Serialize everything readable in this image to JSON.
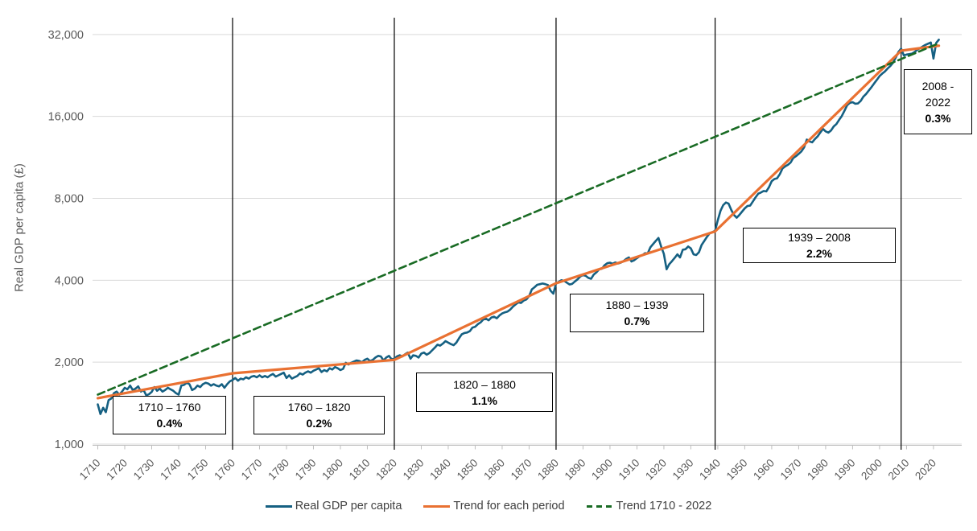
{
  "chart_data": {
    "type": "line",
    "title": "",
    "xlabel": "",
    "ylabel": "Real GDP per capita (£)",
    "y_scale": "log2",
    "ylim": [
      1000,
      40000
    ],
    "xlim": [
      1710,
      2022
    ],
    "y_ticks": [
      {
        "value": 1000,
        "label": "1,000"
      },
      {
        "value": 2000,
        "label": "2,000"
      },
      {
        "value": 4000,
        "label": "4,000"
      },
      {
        "value": 8000,
        "label": "8,000"
      },
      {
        "value": 16000,
        "label": "16,000"
      },
      {
        "value": 32000,
        "label": "32,000"
      }
    ],
    "x_ticks": [
      1710,
      1720,
      1730,
      1740,
      1750,
      1760,
      1770,
      1780,
      1790,
      1800,
      1810,
      1820,
      1830,
      1840,
      1850,
      1860,
      1870,
      1880,
      1890,
      1900,
      1910,
      1920,
      1930,
      1940,
      1950,
      1960,
      1970,
      1980,
      1990,
      2000,
      2010,
      2020
    ],
    "period_dividers": [
      1760,
      1820,
      1880,
      1939,
      2008
    ],
    "legend_position": "bottom",
    "grid": "horizontal",
    "series": [
      {
        "name": "Real GDP per capita",
        "color": "#156082",
        "style": "solid",
        "width": 2.6,
        "start_year": 1710,
        "annual_values": [
          1400,
          1290,
          1360,
          1310,
          1450,
          1470,
          1540,
          1560,
          1520,
          1560,
          1610,
          1590,
          1640,
          1580,
          1600,
          1630,
          1560,
          1580,
          1510,
          1525,
          1555,
          1620,
          1570,
          1600,
          1560,
          1580,
          1610,
          1590,
          1570,
          1540,
          1520,
          1640,
          1650,
          1680,
          1660,
          1580,
          1600,
          1640,
          1620,
          1660,
          1680,
          1670,
          1640,
          1660,
          1640,
          1630,
          1660,
          1610,
          1660,
          1700,
          1720,
          1750,
          1710,
          1740,
          1730,
          1760,
          1740,
          1770,
          1780,
          1760,
          1790,
          1760,
          1780,
          1760,
          1790,
          1810,
          1770,
          1790,
          1810,
          1830,
          1750,
          1790,
          1740,
          1760,
          1780,
          1820,
          1800,
          1830,
          1850,
          1830,
          1860,
          1880,
          1900,
          1840,
          1870,
          1850,
          1900,
          1880,
          1920,
          1900,
          1870,
          1890,
          1990,
          1960,
          1990,
          2010,
          2030,
          2020,
          2000,
          2040,
          2060,
          2020,
          2040,
          2080,
          2110,
          2100,
          2030,
          2080,
          2110,
          2050,
          2060,
          2100,
          2120,
          2100,
          2140,
          2170,
          2060,
          2120,
          2110,
          2080,
          2150,
          2170,
          2130,
          2160,
          2210,
          2260,
          2320,
          2300,
          2340,
          2390,
          2360,
          2330,
          2310,
          2360,
          2450,
          2530,
          2560,
          2570,
          2600,
          2680,
          2700,
          2760,
          2800,
          2870,
          2890,
          2850,
          2920,
          2940,
          2900,
          2970,
          3020,
          3050,
          3070,
          3120,
          3200,
          3260,
          3320,
          3300,
          3370,
          3400,
          3500,
          3700,
          3770,
          3850,
          3870,
          3890,
          3870,
          3840,
          3660,
          3570,
          3890,
          3950,
          4000,
          3980,
          3920,
          3860,
          3880,
          3960,
          4030,
          4130,
          4180,
          4150,
          4080,
          4050,
          4200,
          4280,
          4390,
          4410,
          4540,
          4620,
          4640,
          4600,
          4650,
          4610,
          4640,
          4700,
          4790,
          4850,
          4690,
          4740,
          4820,
          4900,
          4940,
          5030,
          5020,
          5290,
          5430,
          5580,
          5720,
          5310,
          5000,
          4390,
          4580,
          4700,
          4830,
          4980,
          4850,
          5180,
          5200,
          5320,
          5240,
          4980,
          4950,
          5070,
          5390,
          5580,
          5780,
          5960,
          6010,
          6080,
          6650,
          7200,
          7550,
          7720,
          7650,
          7250,
          6950,
          6790,
          6950,
          7150,
          7350,
          7500,
          7520,
          7790,
          8060,
          8320,
          8400,
          8510,
          8480,
          8800,
          9250,
          9420,
          9480,
          9820,
          10300,
          10480,
          10620,
          10830,
          11250,
          11430,
          11650,
          11900,
          12300,
          13150,
          12950,
          12850,
          13200,
          13500,
          13950,
          14400,
          14100,
          13950,
          14200,
          14700,
          15000,
          15550,
          16050,
          16800,
          17600,
          17950,
          18050,
          17800,
          17850,
          18250,
          18900,
          19350,
          19900,
          20500,
          21150,
          21800,
          22500,
          23000,
          23400,
          24000,
          24500,
          25200,
          26300,
          27600,
          28400,
          26800,
          27000,
          27100,
          27200,
          27600,
          28100,
          28500,
          28900,
          29300,
          29600,
          29900,
          26100,
          29800,
          30600
        ]
      },
      {
        "name": "Trend for each period",
        "color": "#E97132",
        "style": "solid",
        "width": 3.2,
        "points": [
          [
            1710,
            1475
          ],
          [
            1760,
            1820
          ],
          [
            1820,
            2040
          ],
          [
            1880,
            3900
          ],
          [
            1939,
            6050
          ],
          [
            2008,
            27900
          ],
          [
            2022,
            29100
          ]
        ]
      },
      {
        "name": "Trend 1710 - 2022",
        "color": "#196B24",
        "style": "dashed",
        "width": 2.6,
        "points": [
          [
            1710,
            1520
          ],
          [
            2022,
            29700
          ]
        ]
      }
    ],
    "annotations": [
      {
        "period": "1710 – 1760",
        "rate": "0.4%"
      },
      {
        "period": "1760 – 1820",
        "rate": "0.2%"
      },
      {
        "period": "1820 – 1880",
        "rate": "1.1%"
      },
      {
        "period": "1880 – 1939",
        "rate": "0.7%"
      },
      {
        "period": "1939 – 2008",
        "rate": "2.2%"
      },
      {
        "period": "2008 - 2022",
        "rate": "0.3%"
      }
    ],
    "colors": {
      "gridline": "#D9D9D9",
      "axis_line": "#BFBFBF",
      "tick_label": "#595959",
      "divider": "#000000",
      "legend_text": "#404040",
      "annotation_border": "#000000"
    }
  }
}
